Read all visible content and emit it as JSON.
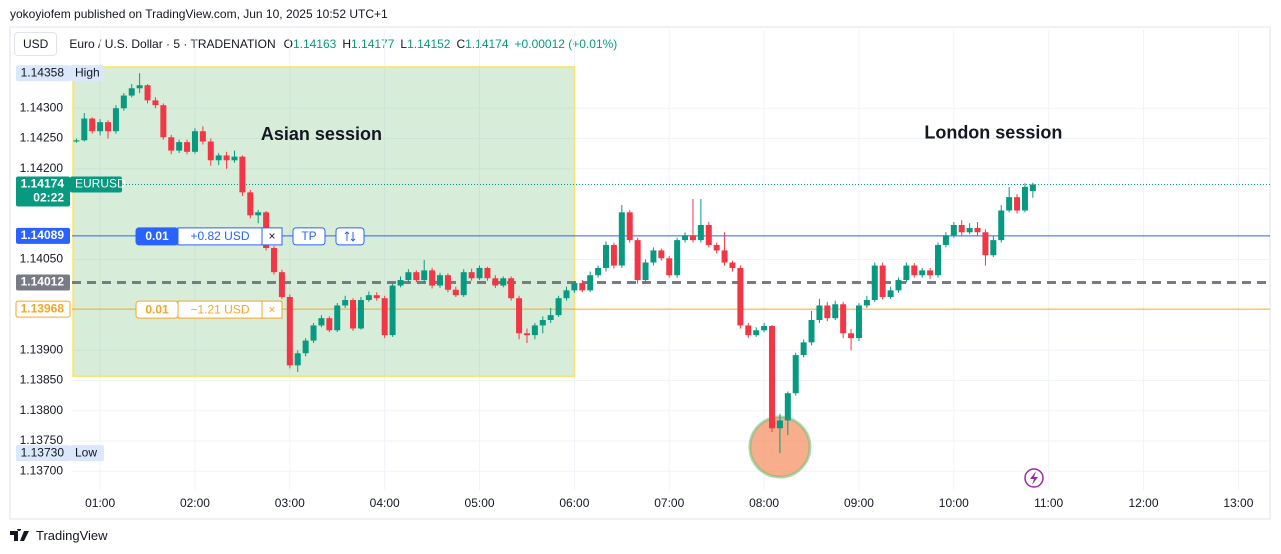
{
  "header": "yokoyiofem published on TradingView.com, Jun 10, 2025 10:52 UTC+1",
  "footer": "TradingView",
  "chart_data": {
    "type": "candlestick",
    "currency": "USD",
    "title": "Euro / U.S. Dollar · 5 · TRADENATION",
    "ohlc": [
      {
        "label": "O",
        "value": 1.14163
      },
      {
        "label": "H",
        "value": 1.14177
      },
      {
        "label": "L",
        "value": 1.14152
      },
      {
        "label": "C",
        "value": 1.14174
      }
    ],
    "change": "+0.00012 (+0.01%)",
    "up_color": "#089981",
    "down_color": "#f23645",
    "annotations": [
      {
        "text": "Asian session",
        "time": "03:20",
        "price": 1.14255
      },
      {
        "text": "London session",
        "time": "10:25",
        "price": 1.14258
      }
    ],
    "session_box": {
      "start": "00:43",
      "end": "06:00",
      "top": 1.14368,
      "bottom": 1.13857
    },
    "highlight": {
      "time": "08:10",
      "price": 1.1374
    },
    "xlim": [
      "00:03",
      "13:20"
    ],
    "ylim": [
      1.13669,
      1.14388
    ],
    "xticks": [
      "01:00",
      "02:00",
      "03:00",
      "04:00",
      "05:00",
      "06:00",
      "07:00",
      "08:00",
      "09:00",
      "10:00",
      "11:00",
      "12:00",
      "13:00"
    ],
    "yticks": [
      {
        "value": 1.143,
        "label": "1.14300"
      },
      {
        "value": 1.1425,
        "label": "1.14250"
      },
      {
        "value": 1.142,
        "label": "1.14200"
      },
      {
        "value": 1.1405,
        "label": "1.14050"
      },
      {
        "value": 1.139,
        "label": "1.13900"
      },
      {
        "value": 1.1385,
        "label": "1.13850"
      },
      {
        "value": 1.138,
        "label": "1.13800"
      },
      {
        "value": 1.1375,
        "label": "1.13750"
      },
      {
        "value": 1.137,
        "label": "1.13700"
      }
    ],
    "grid": true,
    "levels": [
      {
        "price": 1.14358,
        "tag": "High",
        "color": "#dbe7fb"
      },
      {
        "price": {
          "value": 1.1373,
          "label": "1.13730"
        },
        "tag": "Low",
        "color": "#dbe7fb"
      },
      {
        "price": 1.14174,
        "tag": "EURUSD",
        "countdown": "02:22",
        "color": "#089981"
      },
      {
        "price": 1.14089,
        "color": "#2962ff",
        "order": {
          "qty": 0.01,
          "pnl": "+0.82 USD",
          "close": "×",
          "tp": "TP"
        }
      },
      {
        "price": 1.14012,
        "color": "#787b86"
      },
      {
        "price": 1.13968,
        "color": "#f5a623",
        "order": {
          "qty": 0.01,
          "pnl": "−1.21 USD",
          "close": "×"
        }
      }
    ],
    "x": [
      "00:45",
      "00:50",
      "00:55",
      "01:00",
      "01:05",
      "01:10",
      "01:15",
      "01:20",
      "01:25",
      "01:30",
      "01:35",
      "01:40",
      "01:45",
      "01:50",
      "01:55",
      "02:00",
      "02:05",
      "02:10",
      "02:15",
      "02:20",
      "02:25",
      "02:30",
      "02:35",
      "02:40",
      "02:45",
      "02:50",
      "02:55",
      "03:00",
      "03:05",
      "03:10",
      "03:15",
      "03:20",
      "03:25",
      "03:30",
      "03:35",
      "03:40",
      "03:45",
      "03:50",
      "03:55",
      "04:00",
      "04:05",
      "04:10",
      "04:15",
      "04:20",
      "04:25",
      "04:30",
      "04:35",
      "04:40",
      "04:45",
      "04:50",
      "04:55",
      "05:00",
      "05:05",
      "05:10",
      "05:15",
      "05:20",
      "05:25",
      "05:30",
      "05:35",
      "05:40",
      "05:45",
      "05:50",
      "05:55",
      "06:00",
      "06:05",
      "06:10",
      "06:15",
      "06:20",
      "06:25",
      "06:30",
      "06:35",
      "06:40",
      "06:45",
      "06:50",
      "06:55",
      "07:00",
      "07:05",
      "07:10",
      "07:15",
      "07:20",
      "07:25",
      "07:30",
      "07:35",
      "07:40",
      "07:45",
      "07:50",
      "07:55",
      "08:00",
      "08:05",
      "08:10",
      "08:15",
      "08:20",
      "08:25",
      "08:30",
      "08:35",
      "08:40",
      "08:45",
      "08:50",
      "08:55",
      "09:00",
      "09:05",
      "09:10",
      "09:15",
      "09:20",
      "09:25",
      "09:30",
      "09:35",
      "09:40",
      "09:45",
      "09:50",
      "09:55",
      "10:00",
      "10:05",
      "10:10",
      "10:15",
      "10:20",
      "10:25",
      "10:30",
      "10:35",
      "10:40",
      "10:45",
      "10:50"
    ],
    "candles": [
      [
        1.14245,
        1.1425,
        1.14243,
        1.14247
      ],
      [
        1.14247,
        1.14292,
        1.14245,
        1.14283
      ],
      [
        1.14283,
        1.14285,
        1.14258,
        1.14262
      ],
      [
        1.14262,
        1.14282,
        1.14255,
        1.14277
      ],
      [
        1.14277,
        1.1428,
        1.1425,
        1.14262
      ],
      [
        1.14262,
        1.14305,
        1.14258,
        1.143
      ],
      [
        1.143,
        1.14325,
        1.14296,
        1.14321
      ],
      [
        1.14321,
        1.1434,
        1.14318,
        1.14333
      ],
      [
        1.14333,
        1.14358,
        1.14325,
        1.14338
      ],
      [
        1.14338,
        1.1434,
        1.14308,
        1.14313
      ],
      [
        1.14313,
        1.14318,
        1.143,
        1.14305
      ],
      [
        1.14305,
        1.14308,
        1.14248,
        1.14252
      ],
      [
        1.14252,
        1.14256,
        1.14224,
        1.1423
      ],
      [
        1.1423,
        1.14248,
        1.14226,
        1.14244
      ],
      [
        1.14244,
        1.14248,
        1.14224,
        1.14228
      ],
      [
        1.14228,
        1.14267,
        1.14225,
        1.14262
      ],
      [
        1.14262,
        1.1427,
        1.1424,
        1.14245
      ],
      [
        1.14245,
        1.1425,
        1.14205,
        1.14214
      ],
      [
        1.14214,
        1.14226,
        1.14206,
        1.14222
      ],
      [
        1.14222,
        1.14228,
        1.142,
        1.14214
      ],
      [
        1.14214,
        1.1423,
        1.1421,
        1.1422
      ],
      [
        1.1422,
        1.14222,
        1.14155,
        1.14161
      ],
      [
        1.14161,
        1.14165,
        1.14118,
        1.14123
      ],
      [
        1.14123,
        1.14132,
        1.1411,
        1.14128
      ],
      [
        1.14128,
        1.1413,
        1.14065,
        1.14069
      ],
      [
        1.14069,
        1.14072,
        1.14025,
        1.14029
      ],
      [
        1.14029,
        1.14033,
        1.13985,
        1.13988
      ],
      [
        1.13988,
        1.13992,
        1.1387,
        1.13875
      ],
      [
        1.13875,
        1.139,
        1.13864,
        1.13895
      ],
      [
        1.13895,
        1.1392,
        1.1389,
        1.13916
      ],
      [
        1.13916,
        1.13945,
        1.13912,
        1.13941
      ],
      [
        1.13941,
        1.13958,
        1.13938,
        1.13953
      ],
      [
        1.13953,
        1.13956,
        1.1393,
        1.13933
      ],
      [
        1.13933,
        1.13978,
        1.1393,
        1.13974
      ],
      [
        1.13974,
        1.1399,
        1.1397,
        1.13983
      ],
      [
        1.13983,
        1.13986,
        1.13932,
        1.13936
      ],
      [
        1.13936,
        1.13988,
        1.13934,
        1.13983
      ],
      [
        1.13983,
        1.13997,
        1.1398,
        1.13991
      ],
      [
        1.13991,
        1.13996,
        1.13982,
        1.13986
      ],
      [
        1.13986,
        1.1399,
        1.1392,
        1.13925
      ],
      [
        1.13925,
        1.14012,
        1.13922,
        1.14007
      ],
      [
        1.14007,
        1.14022,
        1.14004,
        1.14016
      ],
      [
        1.14016,
        1.14034,
        1.14012,
        1.14029
      ],
      [
        1.14029,
        1.14032,
        1.14012,
        1.14016
      ],
      [
        1.14016,
        1.14049,
        1.14012,
        1.14032
      ],
      [
        1.14032,
        1.14036,
        1.14002,
        1.14007
      ],
      [
        1.14007,
        1.14028,
        1.14003,
        1.14024
      ],
      [
        1.14024,
        1.14027,
        1.13996,
        1.14
      ],
      [
        1.14,
        1.14005,
        1.13988,
        1.13991
      ],
      [
        1.13991,
        1.14034,
        1.13988,
        1.14029
      ],
      [
        1.14029,
        1.14035,
        1.14015,
        1.14019
      ],
      [
        1.14019,
        1.1404,
        1.14016,
        1.14036
      ],
      [
        1.14036,
        1.14038,
        1.14015,
        1.14019
      ],
      [
        1.14019,
        1.14024,
        1.14003,
        1.14007
      ],
      [
        1.14007,
        1.14022,
        1.14004,
        1.14019
      ],
      [
        1.14019,
        1.14022,
        1.13982,
        1.13986
      ],
      [
        1.13986,
        1.1399,
        1.13918,
        1.13928
      ],
      [
        1.13928,
        1.13936,
        1.13912,
        1.13925
      ],
      [
        1.13925,
        1.13945,
        1.13918,
        1.13941
      ],
      [
        1.13941,
        1.13956,
        1.13928,
        1.1395
      ],
      [
        1.1395,
        1.1397,
        1.13945,
        1.13958
      ],
      [
        1.13958,
        1.1399,
        1.13955,
        1.13986
      ],
      [
        1.13986,
        1.14005,
        1.13982,
        1.13999
      ],
      [
        1.13999,
        1.14014,
        1.13995,
        1.14011
      ],
      [
        1.14011,
        1.14016,
        1.13996,
        1.13999
      ],
      [
        1.13999,
        1.1403,
        1.13996,
        1.14024
      ],
      [
        1.14024,
        1.1404,
        1.1402,
        1.14036
      ],
      [
        1.14036,
        1.1408,
        1.1403,
        1.14074
      ],
      [
        1.14074,
        1.14078,
        1.14035,
        1.1404
      ],
      [
        1.1404,
        1.1414,
        1.14036,
        1.14128
      ],
      [
        1.14128,
        1.14132,
        1.14078,
        1.14082
      ],
      [
        1.14082,
        1.14086,
        1.1401,
        1.14016
      ],
      [
        1.14016,
        1.1405,
        1.1401,
        1.14045
      ],
      [
        1.14045,
        1.1407,
        1.1404,
        1.14065
      ],
      [
        1.14065,
        1.14068,
        1.14048,
        1.14052
      ],
      [
        1.14052,
        1.14056,
        1.1402,
        1.14024
      ],
      [
        1.14024,
        1.14086,
        1.1402,
        1.14082
      ],
      [
        1.14082,
        1.14095,
        1.14078,
        1.1409
      ],
      [
        1.1409,
        1.1415,
        1.14078,
        1.14082
      ],
      [
        1.14082,
        1.1415,
        1.14078,
        1.14107
      ],
      [
        1.14107,
        1.14112,
        1.1407,
        1.14074
      ],
      [
        1.14074,
        1.14078,
        1.1406,
        1.14065
      ],
      [
        1.14065,
        1.14095,
        1.1404,
        1.14045
      ],
      [
        1.14045,
        1.14048,
        1.1403,
        1.14036
      ],
      [
        1.14036,
        1.1404,
        1.13936,
        1.13941
      ],
      [
        1.13941,
        1.13945,
        1.1392,
        1.13925
      ],
      [
        1.13925,
        1.13938,
        1.13922,
        1.13933
      ],
      [
        1.13933,
        1.13945,
        1.1393,
        1.1394
      ],
      [
        1.1394,
        1.13942,
        1.13765,
        1.13771
      ],
      [
        1.13771,
        1.13795,
        1.1373,
        1.13784
      ],
      [
        1.13784,
        1.13832,
        1.1376,
        1.13829
      ],
      [
        1.13829,
        1.13896,
        1.13825,
        1.13892
      ],
      [
        1.13892,
        1.13918,
        1.13888,
        1.13913
      ],
      [
        1.13913,
        1.13965,
        1.13908,
        1.1395
      ],
      [
        1.1395,
        1.13985,
        1.13945,
        1.13974
      ],
      [
        1.13974,
        1.1398,
        1.13948,
        1.13953
      ],
      [
        1.13953,
        1.13982,
        1.1395,
        1.13976
      ],
      [
        1.13976,
        1.1398,
        1.1392,
        1.13928
      ],
      [
        1.13928,
        1.13935,
        1.139,
        1.1392
      ],
      [
        1.1392,
        1.13978,
        1.13915,
        1.13974
      ],
      [
        1.13974,
        1.1399,
        1.1397,
        1.13983
      ],
      [
        1.13983,
        1.14045,
        1.1398,
        1.1404
      ],
      [
        1.1404,
        1.14045,
        1.13984,
        1.13988
      ],
      [
        1.13988,
        1.14005,
        1.13985,
        1.13999
      ],
      [
        1.13999,
        1.1402,
        1.13995,
        1.14016
      ],
      [
        1.14016,
        1.14045,
        1.14012,
        1.1404
      ],
      [
        1.1404,
        1.14044,
        1.1402,
        1.14024
      ],
      [
        1.14024,
        1.14036,
        1.1402,
        1.14032
      ],
      [
        1.14032,
        1.14036,
        1.14018,
        1.14024
      ],
      [
        1.14024,
        1.14078,
        1.1402,
        1.14074
      ],
      [
        1.14074,
        1.14095,
        1.1407,
        1.1409
      ],
      [
        1.1409,
        1.14112,
        1.14086,
        1.14107
      ],
      [
        1.14107,
        1.14115,
        1.1409,
        1.14095
      ],
      [
        1.14095,
        1.1411,
        1.14092,
        1.14102
      ],
      [
        1.14102,
        1.14112,
        1.1409,
        1.14095
      ],
      [
        1.14095,
        1.141,
        1.1404,
        1.14057
      ],
      [
        1.14057,
        1.14088,
        1.14054,
        1.14082
      ],
      [
        1.14082,
        1.1414,
        1.14078,
        1.14131
      ],
      [
        1.14131,
        1.1417,
        1.14128,
        1.14153
      ],
      [
        1.14153,
        1.14158,
        1.14126,
        1.14131
      ],
      [
        1.14131,
        1.14176,
        1.14128,
        1.1417
      ],
      [
        1.14163,
        1.14177,
        1.14152,
        1.14174
      ]
    ]
  }
}
